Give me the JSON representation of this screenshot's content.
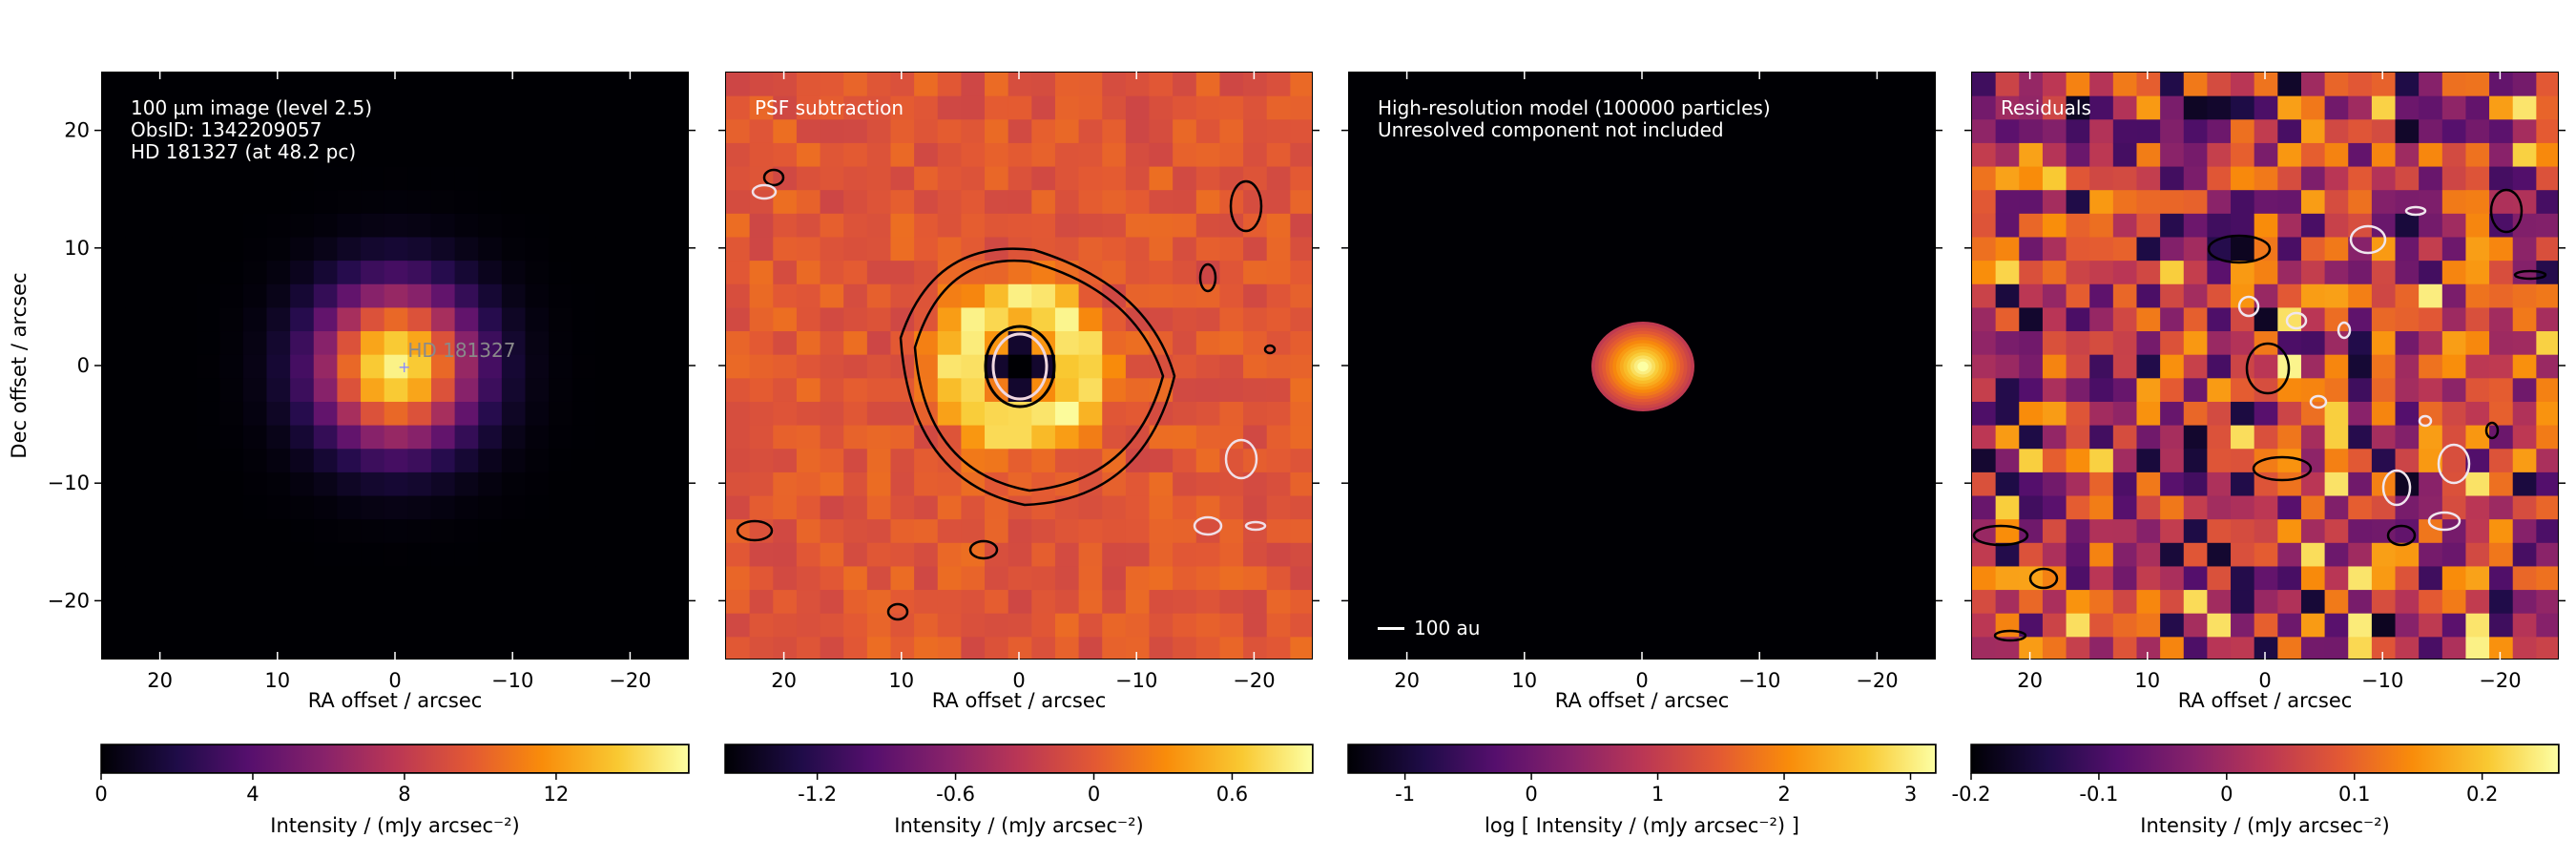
{
  "chart_data": [
    {
      "type": "heatmap",
      "title": "100 µm image (level 2.5)",
      "annotations": [
        "100 µm image (level 2.5)",
        "ObsID: 1342209057",
        "HD 181327 (at 48.2 pc)"
      ],
      "marker_label": "HD 181327",
      "xlabel": "RA offset / arcsec",
      "ylabel": "Dec offset / arcsec",
      "xlim": [
        25,
        -25
      ],
      "ylim": [
        -25,
        25
      ],
      "xticks": [
        "20",
        "10",
        "0",
        "−10",
        "−20"
      ],
      "yticks": [
        "20",
        "10",
        "0",
        "−10",
        "−20"
      ],
      "colormap": "inferno",
      "colorbar_label": "Intensity / (mJy arcsec$^{-2}$)",
      "colorbar_ticks": [
        "0",
        "4",
        "8",
        "12"
      ],
      "colorbar_range": [
        0,
        15.5
      ]
    },
    {
      "type": "heatmap",
      "title": "PSF subtraction",
      "annotations": [
        "PSF subtraction"
      ],
      "xlabel": "RA offset / arcsec",
      "xlim": [
        25,
        -25
      ],
      "ylim": [
        -25,
        25
      ],
      "xticks": [
        "20",
        "10",
        "0",
        "−10",
        "−20"
      ],
      "colormap": "inferno",
      "contours": "black and white contour lines",
      "colorbar_label": "Intensity / (mJy arcsec$^{-2}$)",
      "colorbar_ticks": [
        "-1.2",
        "-0.6",
        "0",
        "0.6"
      ],
      "colorbar_range": [
        -1.6,
        0.95
      ]
    },
    {
      "type": "heatmap",
      "title": "High-resolution model (100000 particles)",
      "annotations": [
        "High-resolution model (100000 particles)",
        "Unresolved component not included"
      ],
      "scale_bar": "100 au",
      "xlabel": "RA offset / arcsec",
      "xlim": [
        25,
        -25
      ],
      "ylim": [
        -25,
        25
      ],
      "xticks": [
        "20",
        "10",
        "0",
        "−10",
        "−20"
      ],
      "colormap": "inferno",
      "colorbar_label": "log [ Intensity / (mJy arcsec$^{-2}$) ]",
      "colorbar_ticks": [
        "-1",
        "0",
        "1",
        "2",
        "3"
      ],
      "colorbar_range": [
        -1.45,
        3.2
      ]
    },
    {
      "type": "heatmap",
      "title": "Residuals",
      "annotations": [
        "Residuals"
      ],
      "xlabel": "RA offset / arcsec",
      "xlim": [
        25,
        -25
      ],
      "ylim": [
        -25,
        25
      ],
      "xticks": [
        "20",
        "10",
        "0",
        "−10",
        "−20"
      ],
      "colormap": "inferno",
      "contours": "black and white contour lines",
      "colorbar_label": "Intensity / (mJy arcsec$^{-2}$)",
      "colorbar_ticks": [
        "-0.2",
        "-0.1",
        "0",
        "0.1",
        "0.2"
      ],
      "colorbar_range": [
        -0.2,
        0.26
      ]
    }
  ],
  "labels": {
    "p1": {
      "line1": "100 µm image (level 2.5)",
      "line2": "ObsID: 1342209057",
      "line3": "HD 181327 (at 48.2 pc)",
      "star": "HD 181327"
    },
    "p2": {
      "line1": "PSF subtraction"
    },
    "p3": {
      "line1": "High-resolution model (100000 particles)",
      "line2": "Unresolved component not included",
      "scale": "100 au"
    },
    "p4": {
      "line1": "Residuals"
    },
    "xlabel": "RA offset / arcsec",
    "ylabel": "Dec offset / arcsec",
    "cb1": "Intensity / (mJy arcsec⁻²)",
    "cb2": "Intensity / (mJy arcsec⁻²)",
    "cb3": "log [ Intensity / (mJy arcsec⁻²) ]",
    "cb4": "Intensity / (mJy arcsec⁻²)"
  }
}
